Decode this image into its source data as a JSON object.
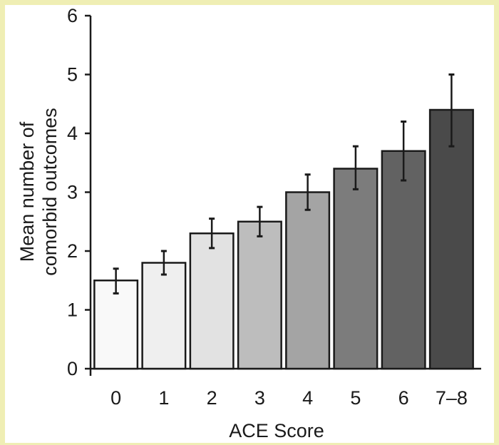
{
  "chart_data": {
    "type": "bar",
    "title": "",
    "xlabel": "ACE Score",
    "ylabel_lines": [
      "Mean number of",
      "comorbid outcomes"
    ],
    "categories": [
      "0",
      "1",
      "2",
      "3",
      "4",
      "5",
      "6",
      "7–8"
    ],
    "values": [
      1.5,
      1.8,
      2.3,
      2.5,
      3.0,
      3.4,
      3.7,
      4.4
    ],
    "error_low": [
      1.28,
      1.6,
      2.05,
      2.25,
      2.7,
      3.05,
      3.2,
      3.78
    ],
    "error_high": [
      1.7,
      2.0,
      2.55,
      2.75,
      3.3,
      3.78,
      4.2,
      5.0
    ],
    "bar_colors": [
      "#f9f9f9",
      "#efefef",
      "#e2e2e2",
      "#bdbdbd",
      "#a4a4a4",
      "#7c7c7c",
      "#626262",
      "#4a4a4a"
    ],
    "ylim": [
      0,
      6
    ],
    "yticks": [
      0,
      1,
      2,
      3,
      4,
      5,
      6
    ],
    "grid": false,
    "legend": "none"
  }
}
